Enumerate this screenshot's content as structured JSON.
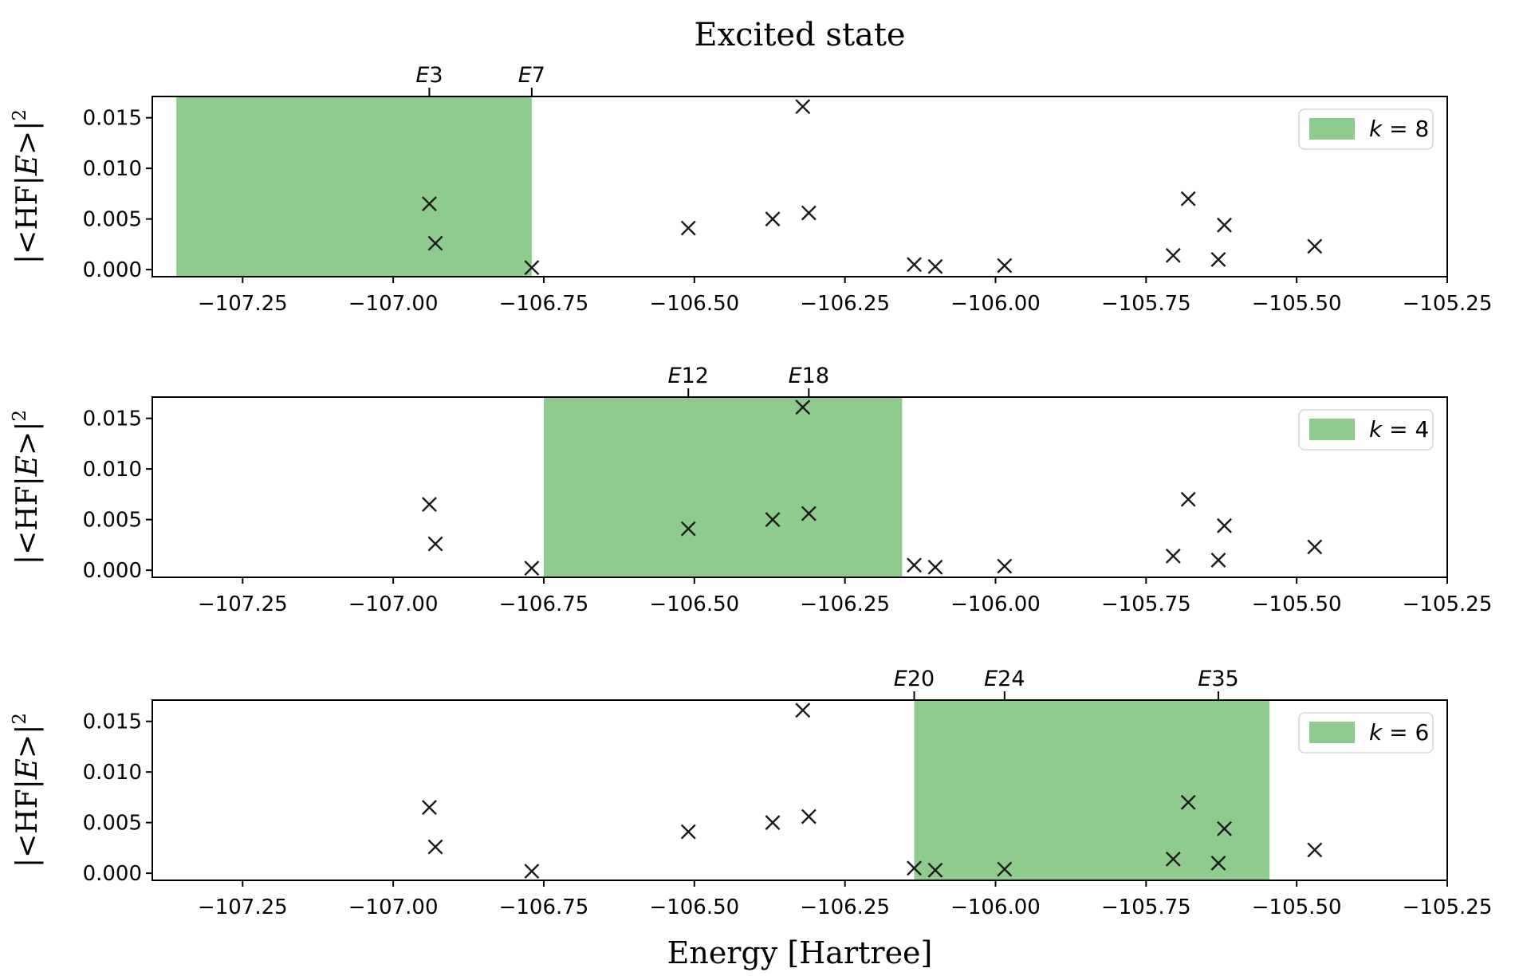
{
  "chart_data": {
    "type": "scatter",
    "title": "Excited state",
    "xlabel": "Energy [Hartree]",
    "ylabel": {
      "text": "|<HF|E>|²",
      "pre": "|<HF|",
      "var": "E",
      "post": ">|",
      "sup": "2"
    },
    "marker": "x",
    "grid": false,
    "xlim": [
      -107.4,
      -105.25
    ],
    "ylim": [
      -0.0007,
      0.0171
    ],
    "x_ticks": [
      -107.25,
      -107.0,
      -106.75,
      -106.5,
      -106.25,
      -106.0,
      -105.75,
      -105.5,
      -105.25
    ],
    "x_tick_labels": [
      "−107.25",
      "−107.00",
      "−106.75",
      "−106.50",
      "−106.25",
      "−106.00",
      "−105.75",
      "−105.50",
      "−105.25"
    ],
    "y_ticks": [
      0.0,
      0.005,
      0.01,
      0.015
    ],
    "y_tick_labels": [
      "0.000",
      "0.005",
      "0.010",
      "0.015"
    ],
    "scatter_x": [
      -106.94,
      -106.93,
      -106.77,
      -106.51,
      -106.37,
      -106.32,
      -106.31,
      -106.135,
      -106.1,
      -105.985,
      -105.705,
      -105.68,
      -105.63,
      -105.62,
      -105.47
    ],
    "scatter_y": [
      0.0065,
      0.0026,
      0.0002,
      0.0041,
      0.005,
      0.0161,
      0.0056,
      0.0005,
      0.0003,
      0.0004,
      0.0014,
      0.007,
      0.001,
      0.0044,
      0.0023
    ],
    "subplots": [
      {
        "legend": {
          "label": "k = 8",
          "var": "k",
          "rest": " = 8"
        },
        "span": [
          -107.36,
          -106.77
        ],
        "annotations": [
          {
            "label": "E3",
            "var": "E",
            "num": "3",
            "x": -106.94
          },
          {
            "label": "E7",
            "var": "E",
            "num": "7",
            "x": -106.77
          }
        ]
      },
      {
        "legend": {
          "label": "k = 4",
          "var": "k",
          "rest": " = 4"
        },
        "span": [
          -106.75,
          -106.155
        ],
        "annotations": [
          {
            "label": "E12",
            "var": "E",
            "num": "12",
            "x": -106.51
          },
          {
            "label": "E18",
            "var": "E",
            "num": "18",
            "x": -106.31
          }
        ]
      },
      {
        "legend": {
          "label": "k = 6",
          "var": "k",
          "rest": " = 6"
        },
        "span": [
          -106.135,
          -105.545
        ],
        "annotations": [
          {
            "label": "E20",
            "var": "E",
            "num": "20",
            "x": -106.135
          },
          {
            "label": "E24",
            "var": "E",
            "num": "24",
            "x": -105.985
          },
          {
            "label": "E35",
            "var": "E",
            "num": "35",
            "x": -105.63
          }
        ]
      }
    ],
    "legend_position": "upper right",
    "colors": {
      "span": "#8fca8f",
      "marker": "#1a1a1a",
      "axis": "#000000",
      "legend_border": "#d9d9d9",
      "background": "#ffffff"
    }
  }
}
